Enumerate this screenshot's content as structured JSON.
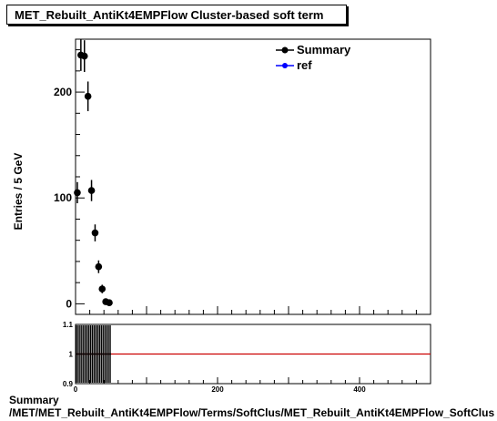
{
  "title": "MET_Rebuilt_AntiKt4EMPFlow Cluster-based soft term",
  "footer": {
    "line1": "Summary",
    "line2": "/MET/MET_Rebuilt_AntiKt4EMPFlow/Terms/SoftClus/MET_Rebuilt_AntiKt4EMPFlow_SoftClus"
  },
  "colors": {
    "summary": "#000000",
    "ref": "#0000ff",
    "ratio_line": "#cc0000"
  },
  "chart_data": [
    {
      "type": "scatter",
      "ylabel": "Entries / 5 GeV",
      "xlabel": "",
      "xlim": [
        0,
        500
      ],
      "ylim": [
        -10,
        250
      ],
      "x_ticks": [
        0,
        200,
        400
      ],
      "x_tick_labels": [
        "",
        "",
        ""
      ],
      "y_ticks": [
        0,
        100,
        200
      ],
      "y_tick_labels": [
        "0",
        "100",
        "200"
      ],
      "legend_position": "top-right",
      "series": [
        {
          "name": "Summary",
          "x": [
            2.5,
            7.5,
            12.5,
            17.5,
            22.5,
            27.5,
            32.5,
            37.5,
            42.5,
            47.5
          ],
          "values": [
            105,
            235,
            234,
            196,
            107,
            67,
            35,
            14,
            2,
            1
          ],
          "errors": [
            10,
            15,
            15,
            14,
            10,
            8,
            6,
            4,
            1.5,
            1
          ]
        },
        {
          "name": "ref",
          "x": [],
          "values": []
        }
      ]
    },
    {
      "type": "scatter",
      "xlim": [
        0,
        500
      ],
      "ylim": [
        0.9,
        1.1
      ],
      "x_ticks": [
        0,
        200,
        400
      ],
      "x_tick_labels": [
        "0",
        "200",
        "400"
      ],
      "y_ticks": [
        0.9,
        1,
        1.1
      ],
      "y_tick_labels": [
        "0.9",
        "1",
        "1.1"
      ],
      "reference_line": 1,
      "series": [
        {
          "name": "",
          "x": [
            2.5,
            7.5,
            12.5,
            17.5,
            22.5,
            27.5,
            32.5,
            37.5,
            42.5,
            47.5
          ],
          "values": [
            1,
            1,
            1,
            1,
            1,
            1,
            1,
            1,
            1,
            1
          ]
        }
      ]
    }
  ]
}
